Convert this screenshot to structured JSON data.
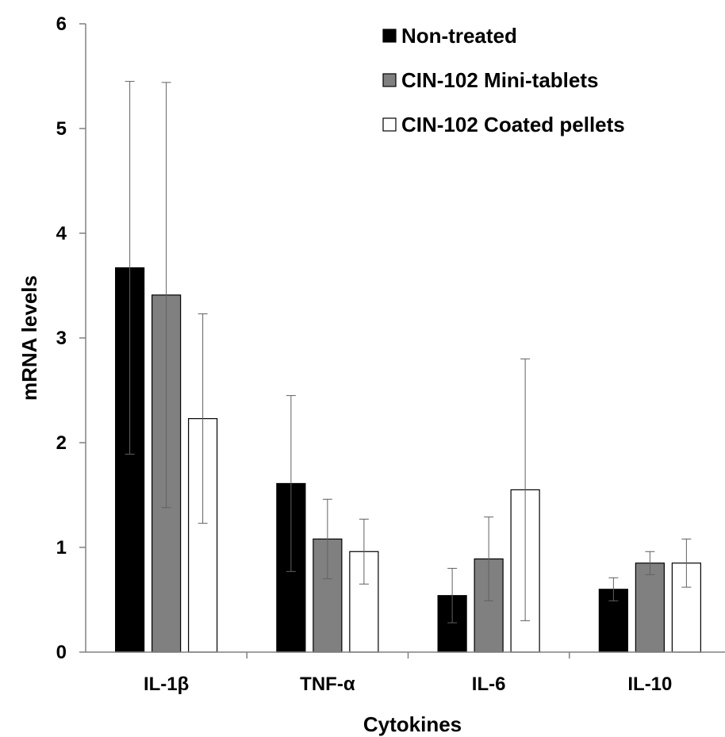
{
  "chart_data": {
    "type": "bar",
    "title": "",
    "xlabel": "Cytokines",
    "ylabel": "mRNA levels",
    "ylim": [
      0,
      6
    ],
    "yticks": [
      0,
      1,
      2,
      3,
      4,
      5,
      6
    ],
    "categories": [
      "IL-1β",
      "TNF-α",
      "IL-6",
      "IL-10"
    ],
    "series": [
      {
        "name": "Non-treated",
        "color": "#000000",
        "values": [
          3.67,
          1.61,
          0.54,
          0.6
        ],
        "errors": [
          1.78,
          0.84,
          0.26,
          0.11
        ]
      },
      {
        "name": "CIN-102 Mini-tablets",
        "color": "#808080",
        "values": [
          3.41,
          1.08,
          0.89,
          0.85
        ],
        "errors": [
          2.03,
          0.38,
          0.4,
          0.11
        ]
      },
      {
        "name": "CIN-102 Coated pellets",
        "color": "#ffffff",
        "values": [
          2.23,
          0.96,
          1.55,
          0.85
        ],
        "errors": [
          1.0,
          0.31,
          1.25,
          0.23
        ]
      }
    ],
    "legend_position": "top-right",
    "grid": false
  }
}
